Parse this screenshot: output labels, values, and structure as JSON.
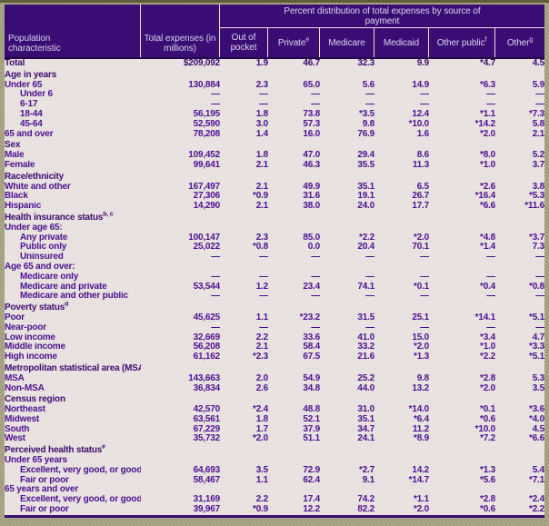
{
  "header": {
    "population_characteristic": "Population characteristic",
    "total_expenses": "Total expenses (in millions)",
    "span_title": "Percent distribution of total expenses by source of payment",
    "payment_columns": [
      {
        "label": "Out of pocket",
        "sup": ""
      },
      {
        "label": "Private",
        "sup": "e"
      },
      {
        "label": "Medicare",
        "sup": ""
      },
      {
        "label": "Medicaid",
        "sup": ""
      },
      {
        "label": "Other public",
        "sup": "f"
      },
      {
        "label": "Other",
        "sup": "g"
      }
    ]
  },
  "colors": {
    "header_bg": "#3a0d75",
    "header_text": "#ddd4ee",
    "body_bg": "#e9e0e0",
    "body_text": "#4a1090",
    "frame": "#a8a183",
    "dark_rule": "#22064a"
  },
  "table": {
    "type": "table",
    "rows": [
      {
        "label": "Total",
        "type": "total",
        "indent": 0,
        "values": [
          "$209,092",
          "1.9",
          "46.7",
          "32.3",
          "9.9",
          "*4.7",
          "4.5"
        ]
      },
      {
        "label": "Age in years",
        "sup": "",
        "type": "section",
        "indent": 0,
        "values": null
      },
      {
        "label": "Under 65",
        "type": "data",
        "indent": 0,
        "values": [
          "130,884",
          "2.3",
          "65.0",
          "5.6",
          "14.9",
          "*6.3",
          "5.9"
        ]
      },
      {
        "label": "Under 6",
        "type": "data",
        "indent": 1,
        "values": [
          "—",
          "—",
          "—",
          "—",
          "—",
          "—",
          "—"
        ]
      },
      {
        "label": "6-17",
        "type": "data",
        "indent": 1,
        "values": [
          "—",
          "—",
          "—",
          "—",
          "—",
          "—",
          "—"
        ]
      },
      {
        "label": "18-44",
        "type": "data",
        "indent": 1,
        "values": [
          "56,195",
          "1.8",
          "73.8",
          "*3.5",
          "12.4",
          "*1.1",
          "*7.3"
        ]
      },
      {
        "label": "45-64",
        "type": "data",
        "indent": 1,
        "values": [
          "52,590",
          "3.0",
          "57.3",
          "9.8",
          "*10.0",
          "*14.2",
          "5.8"
        ]
      },
      {
        "label": "65 and over",
        "type": "data",
        "indent": 0,
        "values": [
          "78,208",
          "1.4",
          "16.0",
          "76.9",
          "1.6",
          "*2.0",
          "2.1"
        ]
      },
      {
        "label": "Sex",
        "sup": "",
        "type": "section",
        "indent": 0,
        "values": null
      },
      {
        "label": "Male",
        "type": "data",
        "indent": 0,
        "values": [
          "109,452",
          "1.8",
          "47.0",
          "29.4",
          "8.6",
          "*8.0",
          "5.2"
        ]
      },
      {
        "label": "Female",
        "type": "data",
        "indent": 0,
        "values": [
          "99,641",
          "2.1",
          "46.3",
          "35.5",
          "11.3",
          "*1.0",
          "3.7"
        ]
      },
      {
        "label": "Race/ethnicity",
        "sup": "",
        "type": "section",
        "indent": 0,
        "values": null
      },
      {
        "label": "White and other",
        "type": "data",
        "indent": 0,
        "values": [
          "167,497",
          "2.1",
          "49.9",
          "35.1",
          "6.5",
          "*2.6",
          "3.8"
        ]
      },
      {
        "label": "Black",
        "type": "data",
        "indent": 0,
        "values": [
          "27,306",
          "*0.9",
          "31.6",
          "19.1",
          "26.7",
          "*16.4",
          "*5.3"
        ]
      },
      {
        "label": "Hispanic",
        "type": "data",
        "indent": 0,
        "values": [
          "14,290",
          "2.1",
          "38.0",
          "24.0",
          "17.7",
          "*6.6",
          "*11.6"
        ]
      },
      {
        "label": "Health insurance status",
        "sup": "b, c",
        "type": "section",
        "indent": 0,
        "values": null
      },
      {
        "label": "Under age 65:",
        "type": "data",
        "indent": 0,
        "values": null
      },
      {
        "label": "Any private",
        "type": "data",
        "indent": 1,
        "values": [
          "100,147",
          "2.3",
          "85.0",
          "*2.2",
          "*2.0",
          "*4.8",
          "*3.7"
        ]
      },
      {
        "label": "Public only",
        "type": "data",
        "indent": 1,
        "values": [
          "25,022",
          "*0.8",
          "0.0",
          "20.4",
          "70.1",
          "*1.4",
          "7.3"
        ]
      },
      {
        "label": "Uninsured",
        "type": "data",
        "indent": 1,
        "values": [
          "—",
          "—",
          "—",
          "—",
          "—",
          "—",
          "—"
        ]
      },
      {
        "label": "Age 65 and over:",
        "type": "data",
        "indent": 0,
        "values": null
      },
      {
        "label": "Medicare only",
        "type": "data",
        "indent": 1,
        "values": [
          "—",
          "—",
          "—",
          "—",
          "—",
          "—",
          "—"
        ]
      },
      {
        "label": "Medicare and private",
        "type": "data",
        "indent": 1,
        "values": [
          "53,544",
          "1.2",
          "23.4",
          "74.1",
          "*0.1",
          "*0.4",
          "*0.8"
        ]
      },
      {
        "label": "Medicare and other public",
        "type": "data",
        "indent": 1,
        "values": [
          "—",
          "—",
          "—",
          "—",
          "—",
          "—",
          "—"
        ]
      },
      {
        "label": "Poverty status",
        "sup": "d",
        "type": "section",
        "indent": 0,
        "values": null
      },
      {
        "label": "Poor",
        "type": "data",
        "indent": 0,
        "values": [
          "45,625",
          "1.1",
          "*23.2",
          "31.5",
          "25.1",
          "*14.1",
          "*5.1"
        ]
      },
      {
        "label": "Near-poor",
        "type": "data",
        "indent": 0,
        "values": [
          "—",
          "—",
          "—",
          "—",
          "—",
          "—",
          "—"
        ]
      },
      {
        "label": "Low income",
        "type": "data",
        "indent": 0,
        "values": [
          "32,669",
          "2.2",
          "33.6",
          "41.0",
          "15.0",
          "*3.4",
          "4.7"
        ]
      },
      {
        "label": "Middle income",
        "type": "data",
        "indent": 0,
        "values": [
          "56,208",
          "2.1",
          "58.4",
          "33.2",
          "*2.0",
          "*1.0",
          "*3.3"
        ]
      },
      {
        "label": "High income",
        "type": "data",
        "indent": 0,
        "values": [
          "61,162",
          "*2.3",
          "67.5",
          "21.6",
          "*1.3",
          "*2.2",
          "*5.1"
        ]
      },
      {
        "label": "Metropolitan statistical area (MSA)",
        "sup": "e",
        "type": "section",
        "indent": 0,
        "values": null
      },
      {
        "label": "MSA",
        "type": "data",
        "indent": 0,
        "values": [
          "143,663",
          "2.0",
          "54.9",
          "25.2",
          "9.8",
          "*2.8",
          "5.3"
        ]
      },
      {
        "label": "Non-MSA",
        "type": "data",
        "indent": 0,
        "values": [
          "36,834",
          "2.6",
          "34.8",
          "44.0",
          "13.2",
          "*2.0",
          "3.5"
        ]
      },
      {
        "label": "Census region",
        "sup": "",
        "type": "section",
        "indent": 0,
        "values": null
      },
      {
        "label": "Northeast",
        "type": "data",
        "indent": 0,
        "values": [
          "42,570",
          "*2.4",
          "48.8",
          "31.0",
          "*14.0",
          "*0.1",
          "*3.6"
        ]
      },
      {
        "label": "Midwest",
        "type": "data",
        "indent": 0,
        "values": [
          "63,561",
          "1.8",
          "52.1",
          "35.1",
          "*6.4",
          "*0.6",
          "*4.0"
        ]
      },
      {
        "label": "South",
        "type": "data",
        "indent": 0,
        "values": [
          "67,229",
          "1.7",
          "37.9",
          "34.7",
          "11.2",
          "*10.0",
          "4.5"
        ]
      },
      {
        "label": "West",
        "type": "data",
        "indent": 0,
        "values": [
          "35,732",
          "*2.0",
          "51.1",
          "24.1",
          "*8.9",
          "*7.2",
          "*6.6"
        ]
      },
      {
        "label": "Perceived health status",
        "sup": "e",
        "type": "section",
        "indent": 0,
        "values": null
      },
      {
        "label": "Under 65 years",
        "type": "data",
        "indent": 0,
        "values": null
      },
      {
        "label": "Excellent, very good, or good",
        "type": "data",
        "indent": 1,
        "values": [
          "64,693",
          "3.5",
          "72.9",
          "*2.7",
          "14.2",
          "*1.3",
          "5.4"
        ]
      },
      {
        "label": "Fair or poor",
        "type": "data",
        "indent": 1,
        "values": [
          "58,467",
          "1.1",
          "62.4",
          "9.1",
          "*14.7",
          "*5.6",
          "*7.1"
        ]
      },
      {
        "label": "65 years and over",
        "type": "data",
        "indent": 0,
        "values": null
      },
      {
        "label": "Excellent, very good, or good",
        "type": "data",
        "indent": 1,
        "values": [
          "31,169",
          "2.2",
          "17.4",
          "74.2",
          "*1.1",
          "*2.8",
          "*2.4"
        ]
      },
      {
        "label": "Fair or poor",
        "type": "data",
        "indent": 1,
        "values": [
          "39,967",
          "*0.9",
          "12.2",
          "82.2",
          "*2.0",
          "*0.6",
          "*2.2"
        ]
      }
    ]
  }
}
